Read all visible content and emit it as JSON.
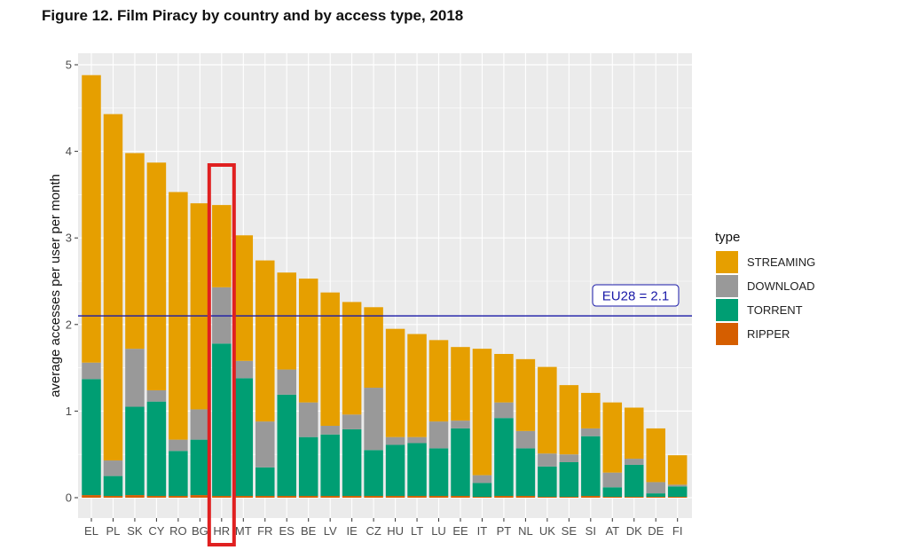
{
  "figure_title": "Figure 12. Film Piracy by country and by access type, 2018",
  "chart_data": {
    "type": "bar",
    "stacked": true,
    "title": "Figure 12. Film Piracy by country and by access type, 2018",
    "xlabel": "",
    "ylabel": "average accesses per user per month",
    "ylim": [
      0,
      5
    ],
    "yticks": [
      0,
      1,
      2,
      3,
      4,
      5
    ],
    "grid": true,
    "legend_title": "type",
    "legend_position": "right",
    "categories": [
      "EL",
      "PL",
      "SK",
      "CY",
      "RO",
      "BG",
      "HR",
      "MT",
      "FR",
      "ES",
      "BE",
      "LV",
      "IE",
      "CZ",
      "HU",
      "LT",
      "LU",
      "EE",
      "IT",
      "PT",
      "NL",
      "UK",
      "SE",
      "SI",
      "AT",
      "DK",
      "DE",
      "FI"
    ],
    "series": [
      {
        "name": "RIPPER",
        "color": "#D55E00",
        "values": [
          0.03,
          0.02,
          0.03,
          0.02,
          0.02,
          0.03,
          0.02,
          0.02,
          0.02,
          0.02,
          0.02,
          0.02,
          0.02,
          0.02,
          0.02,
          0.02,
          0.02,
          0.02,
          0.01,
          0.02,
          0.02,
          0.01,
          0.01,
          0.02,
          0.01,
          0.01,
          0.01,
          0.01
        ]
      },
      {
        "name": "TORRENT",
        "color": "#009E73",
        "values": [
          1.34,
          0.23,
          1.02,
          1.09,
          0.52,
          0.64,
          1.76,
          1.36,
          0.33,
          1.17,
          0.68,
          0.71,
          0.77,
          0.53,
          0.59,
          0.61,
          0.55,
          0.78,
          0.16,
          0.9,
          0.55,
          0.35,
          0.4,
          0.69,
          0.11,
          0.37,
          0.04,
          0.12
        ]
      },
      {
        "name": "DOWNLOAD",
        "color": "#999999",
        "values": [
          0.19,
          0.18,
          0.67,
          0.13,
          0.13,
          0.35,
          0.65,
          0.2,
          0.53,
          0.29,
          0.4,
          0.1,
          0.17,
          0.72,
          0.09,
          0.07,
          0.31,
          0.09,
          0.09,
          0.18,
          0.2,
          0.15,
          0.09,
          0.09,
          0.17,
          0.07,
          0.13,
          0.02
        ]
      },
      {
        "name": "STREAMING",
        "color": "#E69F00",
        "values": [
          3.32,
          4.0,
          2.26,
          2.63,
          2.86,
          2.38,
          0.95,
          1.45,
          1.86,
          1.12,
          1.43,
          1.54,
          1.3,
          0.93,
          1.25,
          1.19,
          0.94,
          0.85,
          1.46,
          0.56,
          0.83,
          1.0,
          0.8,
          0.41,
          0.81,
          0.59,
          0.62,
          0.34
        ]
      }
    ],
    "legend_order": [
      "STREAMING",
      "DOWNLOAD",
      "TORRENT",
      "RIPPER"
    ],
    "reference_line": {
      "value": 2.1,
      "label": "EU28 = 2.1",
      "color": "#1a1aa8"
    },
    "highlight": {
      "category": "HR",
      "color": "#e02020"
    }
  }
}
